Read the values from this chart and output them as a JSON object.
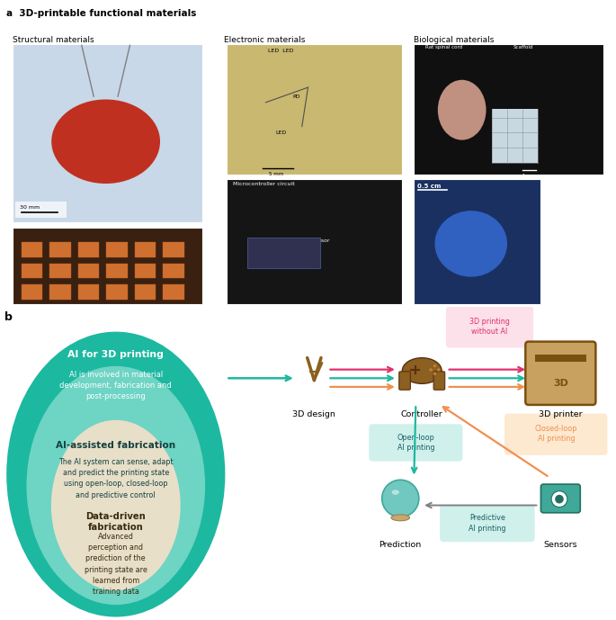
{
  "title_a": "a  3D-printable functional materials",
  "title_b": "b",
  "section_labels": [
    "Structural materials",
    "Electronic materials",
    "Biological materials"
  ],
  "photo_colors": {
    "struct_top": "#b05030",
    "struct_bg": "#c8d8e8",
    "struct_bottom": "#3a2010",
    "elec_top": "#c8b870",
    "elec_bottom": "#151515",
    "bio_top_left": "#c0a898",
    "bio_top_right": "#d8d8d8",
    "bio_bottom": "#1a3060"
  },
  "circle_outer_color": "#1db8a0",
  "circle_mid_color": "#6ed4c4",
  "circle_inner_color": "#e8dfc8",
  "circle_outer_text_bold": "AI for 3D printing",
  "circle_outer_text": "AI is involved in material\ndevelopment, fabrication and\npost-processing",
  "circle_mid_text_bold": "AI-assisted fabrication",
  "circle_mid_text": "The AI system can sense, adapt\nand predict the printing state\nusing open-loop, closed-loop\nand predictive control",
  "circle_inner_text_bold": "Data-driven\nfabrication",
  "circle_inner_text": "Advanced\nperception and\nprediction of the\nprinting state are\nlearned from\ntraining data",
  "node_labels": [
    "3D design",
    "Controller",
    "3D printer",
    "Prediction",
    "Sensors"
  ],
  "arrow_pink": "#e0306a",
  "arrow_teal": "#1db8a0",
  "arrow_orange": "#f09050",
  "arrow_gray": "#808080",
  "box_pink_fill": "#fce0ea",
  "box_teal_fill": "#d0f0ec",
  "box_orange_fill": "#fde8d0",
  "box_label_top": "3D printing\nwithout AI",
  "box_label_closedloop": "Closed-loop\nAI printing",
  "box_label_openloop": "Open-loop\nAI printing",
  "box_label_predictive": "Predictive\nAI printing",
  "printer_fill": "#c8a060",
  "printer_edge": "#7a5010",
  "background_color": "#ffffff"
}
